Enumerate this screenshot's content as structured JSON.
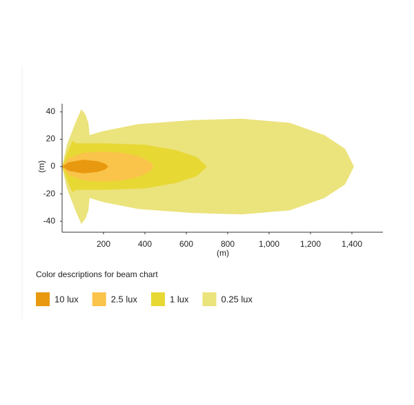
{
  "chart_data": {
    "type": "beam",
    "x_label": "(m)",
    "y_label": "(m)",
    "legend_title": "Color descriptions for beam chart",
    "xlim": [
      0,
      1550
    ],
    "ylim": [
      -48,
      46
    ],
    "xticks": [
      200,
      400,
      600,
      800,
      {
        "value": 1000,
        "label": "1,000"
      },
      {
        "value": 1200,
        "label": "1,200"
      },
      {
        "value": 1400,
        "label": "1,400"
      }
    ],
    "yticks": [
      40,
      20,
      0,
      -20,
      -40
    ],
    "series": [
      {
        "name": "10 lux",
        "color": "#e8990f",
        "x": [
          0,
          30,
          100,
          170,
          210,
          223,
          210,
          170,
          100,
          30,
          0
        ],
        "y": [
          0,
          3,
          5,
          4,
          2,
          0,
          -2,
          -4,
          -5,
          -3,
          0
        ]
      },
      {
        "name": "2.5 lux",
        "color": "#fac34a",
        "x": [
          0,
          30,
          100,
          200,
          300,
          380,
          430,
          440,
          430,
          380,
          300,
          200,
          100,
          30,
          0
        ],
        "y": [
          0,
          6,
          10,
          11,
          10,
          7,
          3,
          0,
          -3,
          -7,
          -10,
          -11,
          -10,
          -6,
          0
        ]
      },
      {
        "name": "1 lux",
        "color": "#e8d834",
        "x": [
          0,
          30,
          50,
          67,
          200,
          400,
          550,
          650,
          700,
          650,
          550,
          400,
          200,
          67,
          50,
          30,
          0
        ],
        "y": [
          0,
          12,
          19,
          17,
          17,
          16,
          12,
          7,
          0,
          -7,
          -12,
          -16,
          -17,
          -17,
          -19,
          -12,
          0
        ]
      },
      {
        "name": "0.25 lux",
        "color": "#ebe37c",
        "x": [
          0,
          23,
          67,
          93,
          113,
          127,
          133,
          200,
          367,
          633,
          867,
          1100,
          1267,
          1367,
          1410,
          1367,
          1267,
          1100,
          867,
          633,
          367,
          200,
          133,
          127,
          113,
          93,
          67,
          23,
          0
        ],
        "y": [
          0,
          16,
          33,
          42,
          38,
          32,
          23,
          26,
          31,
          34,
          35,
          32,
          23,
          13,
          0,
          -13,
          -23,
          -32,
          -35,
          -34,
          -31,
          -26,
          -23,
          -32,
          -38,
          -42,
          -33,
          -16,
          0
        ]
      }
    ]
  }
}
